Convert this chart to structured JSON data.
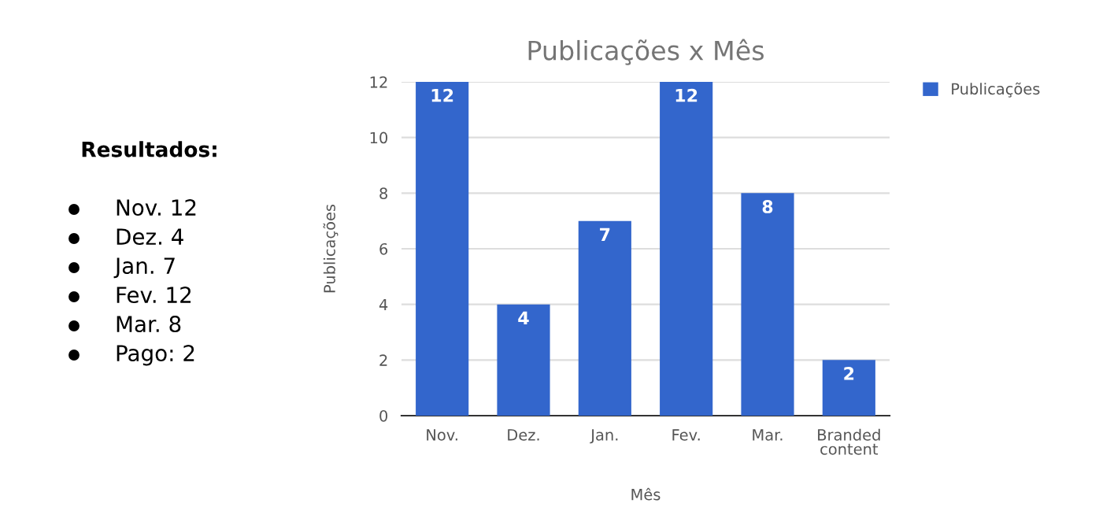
{
  "chart_data": {
    "type": "bar",
    "title": "Publicações x Mês",
    "xlabel": "Mês",
    "ylabel": "Publicações",
    "categories": [
      "Nov.",
      "Dez.",
      "Jan.",
      "Fev.",
      "Mar.",
      "Branded\ncontent"
    ],
    "series": [
      {
        "name": "Publicações",
        "color": "#3366cc",
        "values": [
          12,
          4,
          7,
          12,
          8,
          2
        ]
      }
    ],
    "ylim": [
      0,
      12
    ],
    "yticks": [
      0,
      2,
      4,
      6,
      8,
      10,
      12
    ],
    "grid": "y",
    "legend": "top right",
    "data_labels": true,
    "annotations": [
      "Resultados:",
      "Nov. 12",
      "Dez. 4",
      "Jan. 7",
      "Fev. 12",
      "Mar. 8",
      "Pago: 2"
    ]
  }
}
